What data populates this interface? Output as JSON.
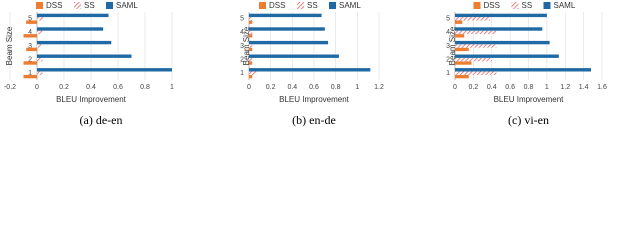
{
  "chart_data": [
    {
      "type": "bar",
      "orientation": "horizontal",
      "caption": "(a) de-en",
      "xlabel": "BLEU Improvement",
      "ylabel": "Beam Size",
      "categories": [
        "1",
        "2",
        "3",
        "4",
        "5"
      ],
      "series": [
        {
          "name": "DSS",
          "color": "#ed7d31",
          "values": [
            -0.1,
            -0.1,
            -0.08,
            -0.1,
            -0.08
          ]
        },
        {
          "name": "SS",
          "color": "#e06060",
          "pattern": "hatch",
          "values": [
            0.04,
            0.04,
            0.03,
            0.04,
            0.05
          ]
        },
        {
          "name": "SAML",
          "color": "#1f6aa5",
          "values": [
            1.0,
            0.7,
            0.55,
            0.49,
            0.53
          ]
        }
      ],
      "xlim": [
        -0.2,
        1
      ],
      "xticks": [
        -0.2,
        0,
        0.2,
        0.4,
        0.6,
        0.8,
        1
      ],
      "grid": true
    },
    {
      "type": "bar",
      "orientation": "horizontal",
      "caption": "(b) en-de",
      "xlabel": "BLEU Improvement",
      "ylabel": "Beam Size",
      "categories": [
        "1",
        "2",
        "3",
        "4",
        "5"
      ],
      "series": [
        {
          "name": "DSS",
          "color": "#ed7d31",
          "values": [
            0.03,
            0.03,
            0.03,
            0.03,
            0.03
          ]
        },
        {
          "name": "SS",
          "color": "#e06060",
          "pattern": "hatch",
          "values": [
            0.07,
            0.03,
            0.03,
            0.03,
            0.03
          ]
        },
        {
          "name": "SAML",
          "color": "#1f6aa5",
          "values": [
            1.12,
            0.83,
            0.73,
            0.7,
            0.67
          ]
        }
      ],
      "xlim": [
        0,
        1.2
      ],
      "xticks": [
        0,
        0.2,
        0.4,
        0.6,
        0.8,
        1,
        1.2
      ],
      "grid": true
    },
    {
      "type": "bar",
      "orientation": "horizontal",
      "caption": "(c) vi-en",
      "xlabel": "BLEU Improvement",
      "ylabel": "Beam Size",
      "categories": [
        "1",
        "2",
        "3",
        "4",
        "5"
      ],
      "series": [
        {
          "name": "DSS",
          "color": "#ed7d31",
          "values": [
            0.15,
            0.18,
            0.15,
            0.1,
            0.08
          ]
        },
        {
          "name": "SS",
          "color": "#e06060",
          "pattern": "hatch",
          "values": [
            0.45,
            0.4,
            0.45,
            0.45,
            0.38
          ]
        },
        {
          "name": "SAML",
          "color": "#1f6aa5",
          "values": [
            1.48,
            1.13,
            1.03,
            0.95,
            1.0
          ]
        }
      ],
      "xlim": [
        0,
        1.6
      ],
      "xticks": [
        0,
        0.2,
        0.4,
        0.6,
        0.8,
        1,
        1.2,
        1.4,
        1.6
      ],
      "grid": true
    }
  ]
}
